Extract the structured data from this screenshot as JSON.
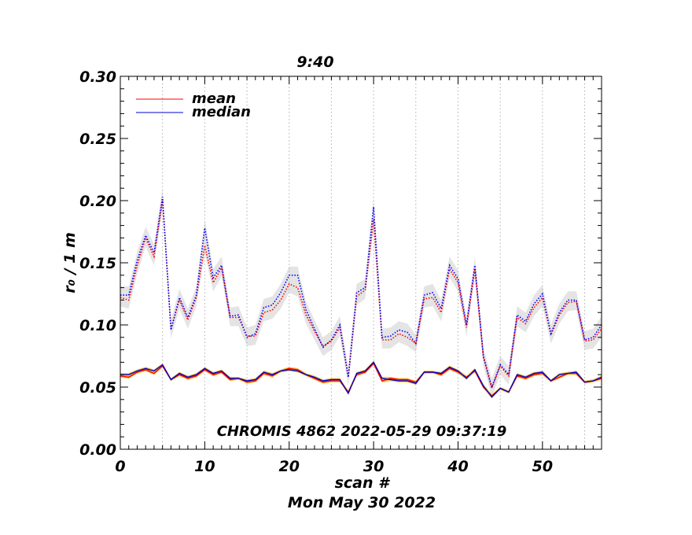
{
  "chart_data": {
    "type": "line",
    "title": "9:40",
    "xlabel": "scan #",
    "ylabel": "r₀ / 1 m",
    "date_label": "Mon May 30 2022",
    "annotation": "CHROMIS 4862 2022-05-29 09:37:19",
    "xlim": [
      0,
      57
    ],
    "ylim": [
      0,
      0.3
    ],
    "x_ticks": [
      0,
      10,
      20,
      30,
      40,
      50
    ],
    "y_ticks": [
      0.0,
      0.05,
      0.1,
      0.15,
      0.2,
      0.25,
      0.3
    ],
    "x_tick_labels": [
      "0",
      "10",
      "20",
      "30",
      "40",
      "50"
    ],
    "y_tick_labels": [
      "0.00",
      "0.05",
      "0.10",
      "0.15",
      "0.20",
      "0.25",
      "0.30"
    ],
    "grid": "vertical dotted lines every 5 scans",
    "legend": {
      "position": "top-left",
      "entries": [
        {
          "name": "mean",
          "color": "#ff0000"
        },
        {
          "name": "median",
          "color": "#0000cc"
        }
      ]
    },
    "x": [
      0,
      1,
      2,
      3,
      4,
      5,
      6,
      7,
      8,
      9,
      10,
      11,
      12,
      13,
      14,
      15,
      16,
      17,
      18,
      19,
      20,
      21,
      22,
      23,
      24,
      25,
      26,
      27,
      28,
      29,
      30,
      31,
      32,
      33,
      34,
      35,
      36,
      37,
      38,
      39,
      40,
      41,
      42,
      43,
      44,
      45,
      46,
      47,
      48,
      49,
      50,
      51,
      52,
      53,
      54,
      55,
      56,
      57
    ],
    "series": [
      {
        "name": "mean",
        "color": "#ff0000",
        "style": "dotted",
        "values": [
          0.122,
          0.12,
          0.148,
          0.17,
          0.155,
          0.2,
          0.097,
          0.12,
          0.104,
          0.122,
          0.164,
          0.134,
          0.146,
          0.106,
          0.106,
          0.091,
          0.091,
          0.11,
          0.112,
          0.12,
          0.133,
          0.13,
          0.108,
          0.095,
          0.083,
          0.087,
          0.098,
          0.058,
          0.123,
          0.128,
          0.185,
          0.088,
          0.088,
          0.093,
          0.09,
          0.085,
          0.121,
          0.122,
          0.11,
          0.145,
          0.134,
          0.098,
          0.145,
          0.074,
          0.049,
          0.067,
          0.059,
          0.106,
          0.101,
          0.114,
          0.122,
          0.092,
          0.108,
          0.118,
          0.119,
          0.087,
          0.088,
          0.097
        ]
      },
      {
        "name": "median",
        "color": "#0000ff",
        "style": "dotted",
        "values": [
          0.124,
          0.124,
          0.152,
          0.172,
          0.158,
          0.203,
          0.096,
          0.122,
          0.106,
          0.124,
          0.178,
          0.138,
          0.148,
          0.107,
          0.108,
          0.09,
          0.093,
          0.114,
          0.116,
          0.126,
          0.14,
          0.14,
          0.112,
          0.097,
          0.082,
          0.088,
          0.1,
          0.058,
          0.126,
          0.13,
          0.195,
          0.09,
          0.091,
          0.096,
          0.094,
          0.085,
          0.124,
          0.126,
          0.113,
          0.148,
          0.137,
          0.1,
          0.148,
          0.075,
          0.05,
          0.068,
          0.06,
          0.108,
          0.103,
          0.117,
          0.125,
          0.093,
          0.11,
          0.12,
          0.12,
          0.088,
          0.09,
          0.1
        ]
      },
      {
        "name": "mean",
        "color": "#ff0000",
        "style": "solid",
        "values": [
          0.059,
          0.058,
          0.062,
          0.064,
          0.061,
          0.067,
          0.056,
          0.06,
          0.057,
          0.059,
          0.064,
          0.06,
          0.062,
          0.056,
          0.057,
          0.054,
          0.055,
          0.061,
          0.059,
          0.063,
          0.065,
          0.064,
          0.06,
          0.057,
          0.054,
          0.055,
          0.055,
          0.046,
          0.06,
          0.062,
          0.069,
          0.055,
          0.057,
          0.056,
          0.056,
          0.054,
          0.062,
          0.062,
          0.06,
          0.065,
          0.062,
          0.058,
          0.063,
          0.05,
          0.043,
          0.049,
          0.046,
          0.059,
          0.057,
          0.06,
          0.061,
          0.055,
          0.058,
          0.061,
          0.061,
          0.054,
          0.055,
          0.057
        ]
      },
      {
        "name": "median",
        "color": "#0000cc",
        "style": "solid",
        "values": [
          0.06,
          0.06,
          0.063,
          0.065,
          0.063,
          0.068,
          0.056,
          0.061,
          0.058,
          0.06,
          0.065,
          0.061,
          0.063,
          0.057,
          0.057,
          0.055,
          0.056,
          0.062,
          0.06,
          0.063,
          0.064,
          0.063,
          0.06,
          0.058,
          0.055,
          0.056,
          0.056,
          0.045,
          0.061,
          0.063,
          0.07,
          0.057,
          0.056,
          0.055,
          0.055,
          0.053,
          0.062,
          0.062,
          0.061,
          0.066,
          0.063,
          0.057,
          0.064,
          0.051,
          0.042,
          0.049,
          0.046,
          0.06,
          0.058,
          0.061,
          0.062,
          0.055,
          0.06,
          0.061,
          0.062,
          0.054,
          0.055,
          0.058
        ]
      }
    ]
  }
}
